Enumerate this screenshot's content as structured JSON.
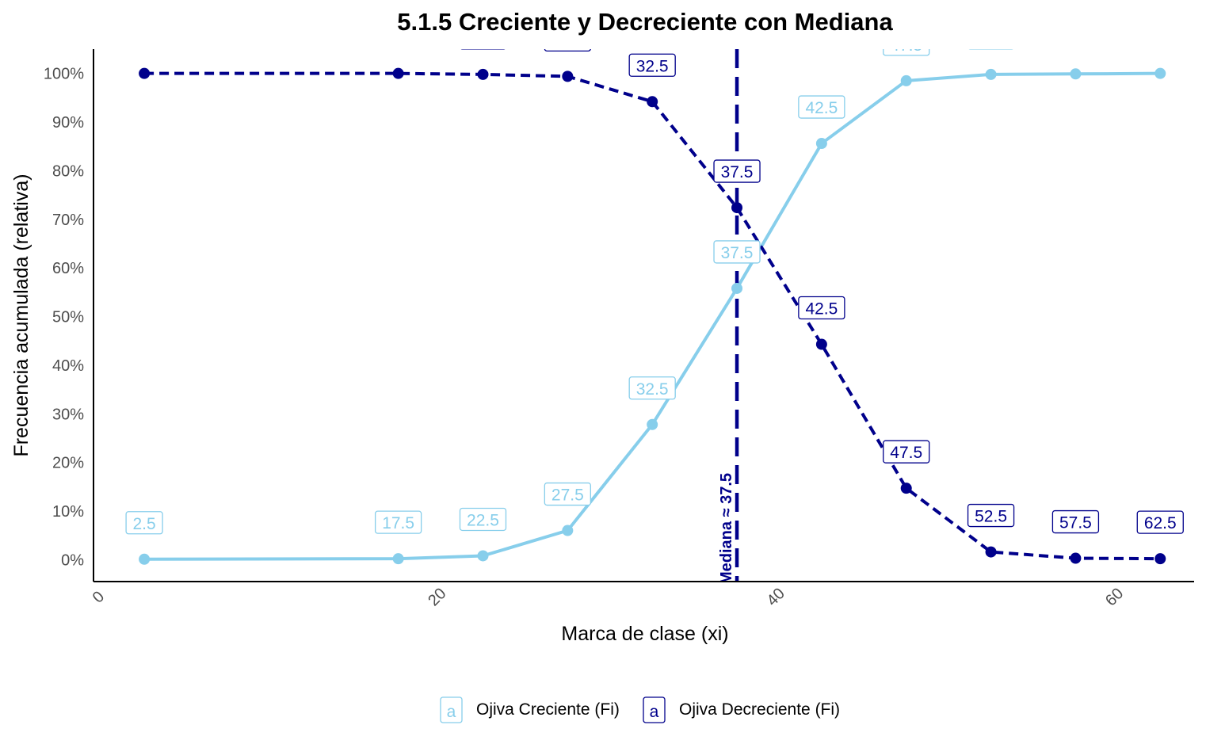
{
  "chart_data": {
    "type": "line",
    "title": "5.1.5 Creciente y Decreciente con Mediana",
    "xlabel": "Marca de clase (xi)",
    "ylabel": "Frecuencia acumulada (relativa)",
    "xlim": [
      -0.5,
      64.5
    ],
    "ylim": [
      -0.045,
      1.05
    ],
    "x_ticks": [
      0,
      20,
      40,
      60
    ],
    "y_ticks": [
      0,
      0.1,
      0.2,
      0.3,
      0.4,
      0.5,
      0.6,
      0.7,
      0.8,
      0.9,
      1.0
    ],
    "y_tick_labels": [
      "0%",
      "10%",
      "20%",
      "30%",
      "40%",
      "50%",
      "60%",
      "70%",
      "80%",
      "90%",
      "100%"
    ],
    "x": [
      2.5,
      17.5,
      22.5,
      27.5,
      32.5,
      37.5,
      42.5,
      47.5,
      52.5,
      57.5,
      62.5
    ],
    "point_labels": [
      "2.5",
      "17.5",
      "22.5",
      "27.5",
      "32.5",
      "37.5",
      "42.5",
      "47.5",
      "52.5",
      "57.5",
      "62.5"
    ],
    "series": [
      {
        "name": "Ojiva Creciente (Fi)",
        "color": "#87CEEB",
        "line_style": "solid",
        "values": [
          0.001,
          0.002,
          0.008,
          0.06,
          0.278,
          0.558,
          0.856,
          0.985,
          0.998,
          0.999,
          1.0
        ]
      },
      {
        "name": "Ojiva Decreciente (Fi)",
        "color": "#00008B",
        "line_style": "dashed",
        "values": [
          1.0,
          1.0,
          0.998,
          0.994,
          0.942,
          0.724,
          0.443,
          0.147,
          0.016,
          0.003,
          0.002
        ]
      }
    ],
    "median": {
      "value": 37.5,
      "label": "Mediana ≈ 37.5",
      "color": "#00008B"
    },
    "legend": {
      "position": "bottom",
      "key_glyph": "a"
    },
    "grid": false
  }
}
